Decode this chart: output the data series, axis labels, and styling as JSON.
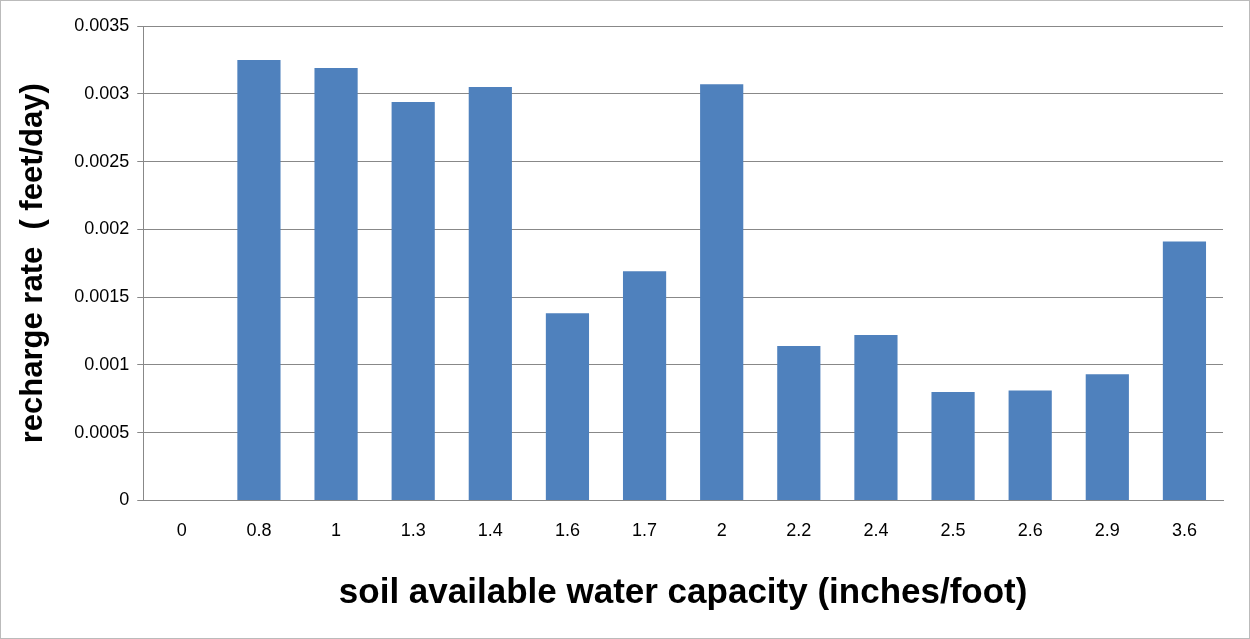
{
  "chart_data": {
    "type": "bar",
    "xlabel": "soil available water capacity (inches/foot)",
    "ylabel": "recharge rate  ( feet/day)",
    "categories": [
      "0",
      "0.8",
      "1",
      "1.3",
      "1.4",
      "1.6",
      "1.7",
      "2",
      "2.2",
      "2.4",
      "2.5",
      "2.6",
      "2.9",
      "3.6"
    ],
    "values": [
      0,
      0.00325,
      0.00319,
      0.00294,
      0.00305,
      0.00138,
      0.00169,
      0.00307,
      0.00114,
      0.00122,
      0.0008,
      0.00081,
      0.00093,
      0.00191
    ],
    "color": "#4f81bd",
    "ylim": [
      0,
      0.0035
    ],
    "yticks": [
      0,
      0.0005,
      0.001,
      0.0015,
      0.002,
      0.0025,
      0.003,
      0.0035
    ],
    "grid": "y",
    "legend": false
  }
}
